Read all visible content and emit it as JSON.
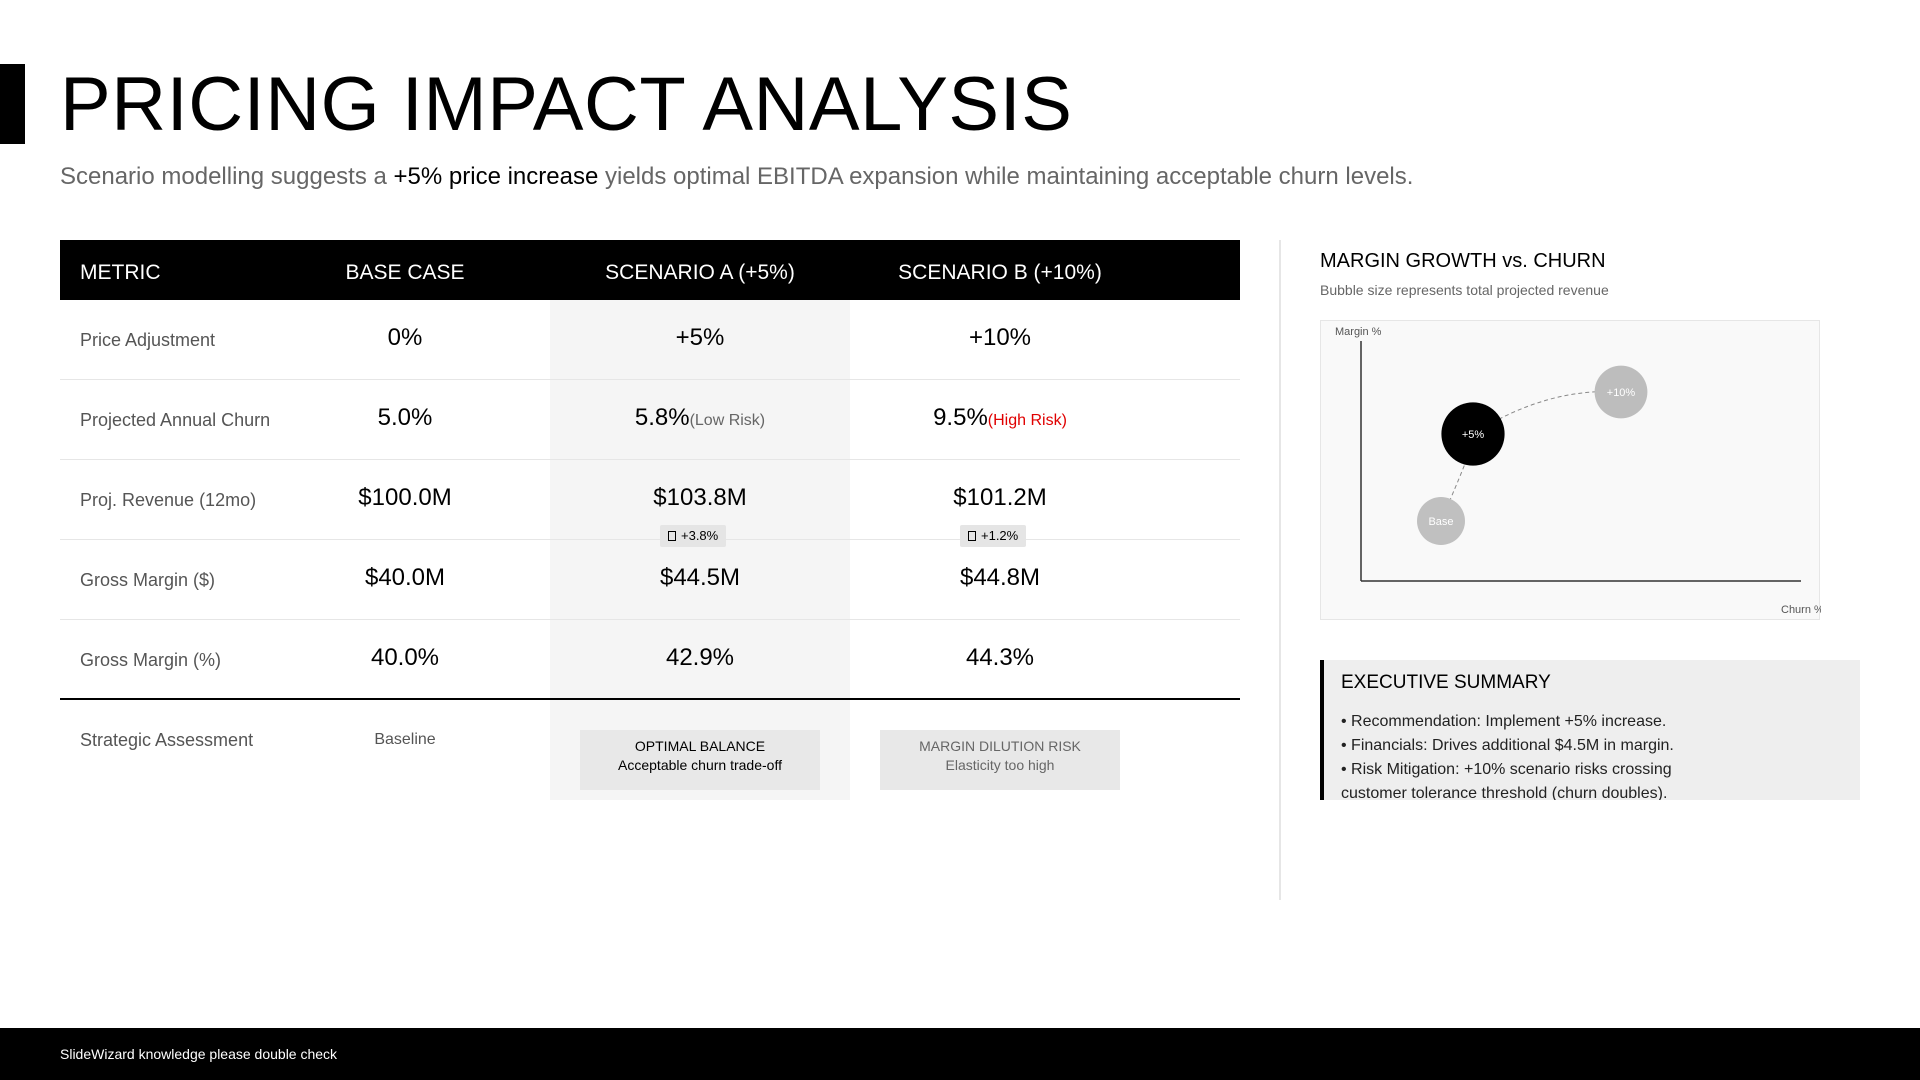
{
  "title": "PRICING IMPACT ANALYSIS",
  "subtitle": {
    "before": "Scenario modelling suggests a ",
    "highlight": "+5% price increase",
    "after": " yields optimal EBITDA expansion while maintaining acceptable churn levels."
  },
  "table": {
    "headers": [
      "METRIC",
      "BASE CASE",
      "SCENARIO A (+5%)",
      "SCENARIO B (+10%)"
    ],
    "rows": [
      {
        "label": "Price Adjustment",
        "base": "0%",
        "a": "+5%",
        "b": "+10%"
      },
      {
        "label": "Projected Annual Churn",
        "base": "5.0%",
        "a": "5.8%",
        "a_note": "(Low Risk)",
        "b": "9.5%",
        "b_note": "(High Risk)"
      },
      {
        "label": "Proj. Revenue (12mo)",
        "base": "$100.0M",
        "a": "$103.8M",
        "a_delta": "+3.8%",
        "b": "$101.2M",
        "b_delta": "+1.2%"
      },
      {
        "label": "Gross Margin ($)",
        "base": "$40.0M",
        "a": "$44.5M",
        "b": "$44.8M"
      },
      {
        "label": "Gross Margin (%)",
        "base": "40.0%",
        "a": "42.9%",
        "b": "44.3%"
      }
    ],
    "assessment": {
      "label": "Strategic Assessment",
      "base": "Baseline",
      "a_title": "OPTIMAL BALANCE",
      "a_sub": "Acceptable churn trade-off",
      "b_title": "MARGIN DILUTION RISK",
      "b_sub": "Elasticity too high"
    }
  },
  "chart": {
    "title": "MARGIN GROWTH vs. CHURN",
    "subtitle": "Bubble size represents total projected revenue",
    "ylabel": "Margin %",
    "xlabel": "Churn %"
  },
  "chart_data": {
    "type": "scatter",
    "xlabel": "Churn %",
    "ylabel": "Margin %",
    "series": [
      {
        "name": "Base",
        "x": 5.0,
        "y": 40.0,
        "size": 100.0,
        "color": "#c0c0c0"
      },
      {
        "name": "+5%",
        "x": 5.8,
        "y": 42.9,
        "size": 103.8,
        "color": "#000000"
      },
      {
        "name": "+10%",
        "x": 9.5,
        "y": 44.3,
        "size": 101.2,
        "color": "#bdbdbd"
      }
    ],
    "trend_line": "dashed",
    "grid": false
  },
  "executive_summary": {
    "title": "EXECUTIVE SUMMARY",
    "items": [
      "• Recommendation: Implement +5% increase.",
      "• Financials: Drives additional $4.5M in margin.",
      "• Risk Mitigation: +10% scenario risks crossing customer tolerance threshold (churn doubles)."
    ]
  },
  "footer": "SlideWizard knowledge please double check"
}
